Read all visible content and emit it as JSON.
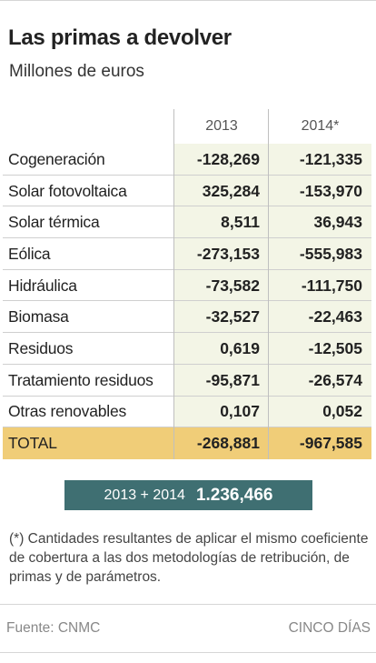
{
  "header": {
    "title": "Las primas a devolver",
    "subtitle": "Millones de euros"
  },
  "table": {
    "columns": [
      "2013",
      "2014*"
    ],
    "rows": [
      {
        "label": "Cogeneración",
        "values": [
          "-128,269",
          "-121,335"
        ]
      },
      {
        "label": "Solar fotovoltaica",
        "values": [
          "325,284",
          "-153,970"
        ]
      },
      {
        "label": "Solar térmica",
        "values": [
          "8,511",
          "36,943"
        ]
      },
      {
        "label": "Eólica",
        "values": [
          "-273,153",
          "-555,983"
        ]
      },
      {
        "label": "Hidráulica",
        "values": [
          "-73,582",
          "-111,750"
        ]
      },
      {
        "label": "Biomasa",
        "values": [
          "-32,527",
          "-22,463"
        ]
      },
      {
        "label": "Residuos",
        "values": [
          "0,619",
          "-12,505"
        ]
      },
      {
        "label": "Tratamiento residuos",
        "values": [
          "-95,871",
          "-26,574"
        ]
      },
      {
        "label": "Otras renovables",
        "values": [
          "0,107",
          "0,052"
        ]
      }
    ],
    "total": {
      "label": "TOTAL",
      "values": [
        "-268,881",
        "-967,585"
      ]
    }
  },
  "summary": {
    "label": "2013 + 2014",
    "value": "1.236,466"
  },
  "note": "(*) Cantidades resultantes de aplicar el mismo coeficiente de cobertura a las dos metodologías de retribución, de primas y de parámetros.",
  "footer": {
    "source": "Fuente: CNMC",
    "brand": "CINCO DÍAS"
  },
  "colors": {
    "cell_bg": "#f3f5e6",
    "total_bg": "#f0cd78",
    "summary_bg": "#3f6f72"
  },
  "chart_data": {
    "type": "table",
    "title": "Las primas a devolver",
    "subtitle": "Millones de euros",
    "columns": [
      "2013",
      "2014*"
    ],
    "categories": [
      "Cogeneración",
      "Solar fotovoltaica",
      "Solar térmica",
      "Eólica",
      "Hidráulica",
      "Biomasa",
      "Residuos",
      "Tratamiento residuos",
      "Otras renovables",
      "TOTAL"
    ],
    "series": [
      {
        "name": "2013",
        "values": [
          -128.269,
          325.284,
          8.511,
          -273.153,
          -73.582,
          -32.527,
          0.619,
          -95.871,
          0.107,
          -268.881
        ]
      },
      {
        "name": "2014*",
        "values": [
          -121.335,
          -153.97,
          36.943,
          -555.983,
          -111.75,
          -22.463,
          -12.505,
          -26.574,
          0.052,
          -967.585
        ]
      }
    ],
    "total_both_years": 1236.466
  }
}
